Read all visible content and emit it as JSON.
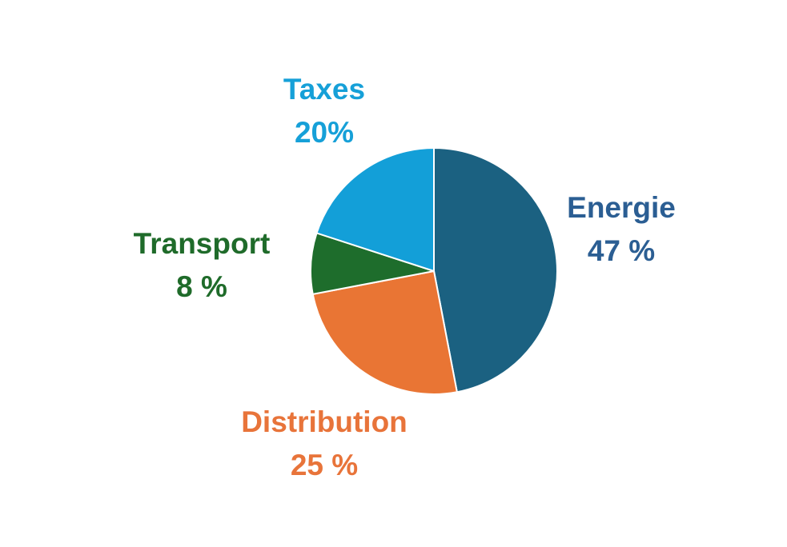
{
  "chart_data": {
    "type": "pie",
    "title": "",
    "start_angle_deg": 0,
    "direction": "clockwise",
    "slices": [
      {
        "name": "Energie",
        "value": 47,
        "value_label": "47 %",
        "color": "#1b6181",
        "text_color": "#2b5e93"
      },
      {
        "name": "Distribution",
        "value": 25,
        "value_label": "25 %",
        "color": "#e97534",
        "text_color": "#e8743a"
      },
      {
        "name": "Transport",
        "value": 8,
        "value_label": "8 %",
        "color": "#1e6d2c",
        "text_color": "#1f6b2a"
      },
      {
        "name": "Taxes",
        "value": 20,
        "value_label": "20%",
        "color": "#139fd8",
        "text_color": "#16a0d8"
      }
    ]
  }
}
